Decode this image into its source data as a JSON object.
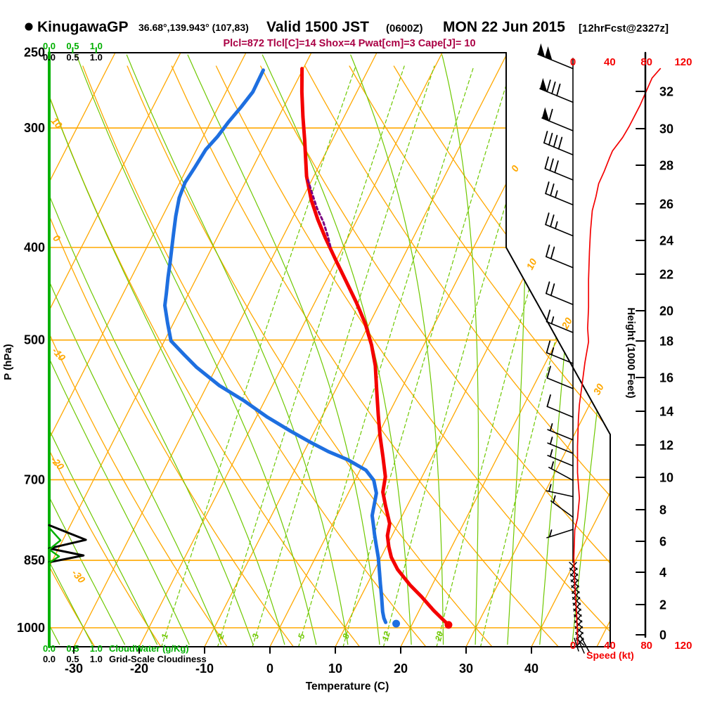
{
  "window": {
    "bg": "#ffffff"
  },
  "title": {
    "bullet": "●",
    "station": "KinugawaGP",
    "coords": "36.68°,139.943° (107,83)",
    "valid": "Valid 1500 JST",
    "zulu": "(0600Z)",
    "date": "MON 22 Jun 2015",
    "fcst": "[12hrFcst@2327z]"
  },
  "params_line": "Plcl=872 Tlcl[C]=14 Shox=4 Pwat[cm]=3 Cape[J]= 10",
  "colors": {
    "isotherm_orange": "#ffa800",
    "adiabat_green": "#6ec800",
    "axis_green": "#00b000",
    "temperature_red": "#f40000",
    "dewpoint_blue": "#1e6fe0",
    "parcel_purple": "#7a0080",
    "params_magenta": "#aa0044",
    "speed_red": "#f40000",
    "frame_black": "#000000"
  },
  "axes": {
    "pressure": {
      "title": "P (hPa)",
      "ticks": [
        "250",
        "300",
        "400",
        "500",
        "700",
        "850",
        "1000"
      ]
    },
    "temperature": {
      "title": "Temperature (C)",
      "ticks": [
        "-30",
        "-20",
        "-10",
        "0",
        "10",
        "20",
        "30",
        "40"
      ]
    },
    "height": {
      "title": "Height (1000 Feet)",
      "ticks": [
        "32",
        "30",
        "28",
        "26",
        "24",
        "22",
        "20",
        "18",
        "16",
        "14",
        "12",
        "10",
        "8",
        "6",
        "4",
        "2",
        "0"
      ]
    },
    "speed": {
      "title": "Speed (kt)",
      "ticks": [
        "0",
        "40",
        "80",
        "120"
      ]
    },
    "cloudwater": {
      "title": "CloudWater (g/Kg)",
      "ticks": [
        "0.0",
        "0.5",
        "1.0"
      ]
    },
    "cloudiness": {
      "title": "Grid-Scale Cloudiness",
      "ticks": [
        "0.0",
        "0.5",
        "1.0"
      ]
    }
  },
  "line_labels": {
    "dry_adiabat": [
      "10",
      "0",
      "-10",
      "-20",
      "-30"
    ],
    "isotherm": [
      "0",
      "10",
      "20",
      "30"
    ],
    "mixing_ratio": [
      "1",
      "2",
      "3",
      "5",
      "8",
      "12",
      "20"
    ]
  },
  "chart_data": {
    "type": "line",
    "variant": "skew-T log-P sounding",
    "pressure_range_hPa": [
      250,
      1050
    ],
    "temperature_axis_C": [
      -30,
      40
    ],
    "speed_axis_kt": [
      0,
      120
    ],
    "height_axis_kft": [
      0,
      32
    ],
    "grid": {
      "isotherms_C": {
        "from": -100,
        "to": 50,
        "step": 10
      },
      "dry_adiabats_C": {
        "from": -40,
        "to": 90,
        "step": 10
      },
      "moist_adiabats_C": {
        "from": -60,
        "to": 45,
        "step": 5
      },
      "mixing_ratio_gkg": [
        1,
        2,
        3,
        5,
        8,
        12,
        20,
        30
      ],
      "pressure_lines_hPa": [
        300,
        400,
        500,
        700,
        850,
        1000
      ]
    },
    "series": [
      {
        "name": "temperature",
        "units": "hPa,C",
        "points": [
          [
            260,
            -40.2
          ],
          [
            275,
            -38.4
          ],
          [
            292,
            -36.3
          ],
          [
            309,
            -34.2
          ],
          [
            337,
            -31.1
          ],
          [
            357,
            -28.5
          ],
          [
            374,
            -26.0
          ],
          [
            391,
            -23.4
          ],
          [
            411,
            -20.3
          ],
          [
            433,
            -17.0
          ],
          [
            457,
            -13.6
          ],
          [
            480,
            -10.7
          ],
          [
            506,
            -8.0
          ],
          [
            532,
            -5.8
          ],
          [
            564,
            -3.7
          ],
          [
            599,
            -1.5
          ],
          [
            630,
            0.4
          ],
          [
            663,
            2.5
          ],
          [
            695,
            4.4
          ],
          [
            721,
            5.2
          ],
          [
            744,
            6.6
          ],
          [
            778,
            8.7
          ],
          [
            801,
            9.3
          ],
          [
            823,
            10.4
          ],
          [
            844,
            11.6
          ],
          [
            869,
            13.5
          ],
          [
            902,
            16.6
          ],
          [
            928,
            19.3
          ],
          [
            959,
            22.2
          ],
          [
            980,
            24.3
          ],
          [
            993,
            25.6
          ]
        ],
        "surface_dot": [
          993,
          25.6
        ]
      },
      {
        "name": "dewpoint",
        "units": "hPa,C",
        "points": [
          [
            261,
            -46.0
          ],
          [
            275,
            -45.9
          ],
          [
            285,
            -46.5
          ],
          [
            296,
            -47.3
          ],
          [
            306,
            -47.8
          ],
          [
            316,
            -48.6
          ],
          [
            330,
            -48.9
          ],
          [
            342,
            -49.2
          ],
          [
            355,
            -48.9
          ],
          [
            371,
            -48.0
          ],
          [
            385,
            -47.1
          ],
          [
            396,
            -46.4
          ],
          [
            414,
            -45.3
          ],
          [
            430,
            -44.4
          ],
          [
            447,
            -43.4
          ],
          [
            460,
            -42.7
          ],
          [
            480,
            -40.9
          ],
          [
            501,
            -39.0
          ],
          [
            518,
            -35.9
          ],
          [
            534,
            -33.0
          ],
          [
            558,
            -28.1
          ],
          [
            579,
            -23.1
          ],
          [
            602,
            -18.3
          ],
          [
            622,
            -13.8
          ],
          [
            639,
            -9.9
          ],
          [
            654,
            -6.3
          ],
          [
            667,
            -2.7
          ],
          [
            684,
            0.9
          ],
          [
            701,
            2.9
          ],
          [
            723,
            4.3
          ],
          [
            741,
            4.8
          ],
          [
            763,
            5.4
          ],
          [
            782,
            6.4
          ],
          [
            798,
            7.2
          ],
          [
            819,
            8.3
          ],
          [
            844,
            9.6
          ],
          [
            876,
            11.0
          ],
          [
            900,
            12.0
          ],
          [
            926,
            13.1
          ],
          [
            962,
            14.5
          ],
          [
            977,
            15.2
          ],
          [
            987,
            15.8
          ]
        ],
        "surface_dot": [
          990,
          17.5
        ]
      },
      {
        "name": "parcel",
        "units": "hPa,C",
        "style": "dashed",
        "points": [
          [
            340,
            -30.6
          ],
          [
            352,
            -28.8
          ],
          [
            364,
            -27.0
          ],
          [
            376,
            -25.0
          ],
          [
            389,
            -23.2
          ],
          [
            399,
            -22.0
          ]
        ]
      },
      {
        "name": "wind_speed",
        "units": "hPa,kt",
        "points": [
          [
            260,
            95
          ],
          [
            266,
            86
          ],
          [
            284,
            73
          ],
          [
            299,
            61
          ],
          [
            307,
            54
          ],
          [
            317,
            43
          ],
          [
            322,
            40
          ],
          [
            333,
            34
          ],
          [
            343,
            28
          ],
          [
            354,
            25
          ],
          [
            366,
            21
          ],
          [
            385,
            19
          ],
          [
            404,
            18
          ],
          [
            432,
            17
          ],
          [
            462,
            17
          ],
          [
            486,
            16
          ],
          [
            502,
            17
          ],
          [
            528,
            13
          ],
          [
            556,
            10
          ],
          [
            584,
            7
          ],
          [
            604,
            6
          ],
          [
            646,
            5
          ],
          [
            688,
            5
          ],
          [
            732,
            7
          ],
          [
            768,
            5
          ],
          [
            790,
            2
          ],
          [
            844,
            1
          ],
          [
            902,
            2
          ],
          [
            964,
            4
          ],
          [
            1022,
            5
          ],
          [
            1040,
            5
          ]
        ]
      }
    ],
    "wind_barbs": [
      {
        "p": 260,
        "kt": 100
      },
      {
        "p": 282,
        "kt": 80
      },
      {
        "p": 302,
        "kt": 60
      },
      {
        "p": 320,
        "kt": 40
      },
      {
        "p": 340,
        "kt": 30
      },
      {
        "p": 361,
        "kt": 25
      },
      {
        "p": 389,
        "kt": 25
      },
      {
        "p": 420,
        "kt": 20
      },
      {
        "p": 459,
        "kt": 20
      },
      {
        "p": 491,
        "kt": 15
      },
      {
        "p": 529,
        "kt": 15
      },
      {
        "p": 562,
        "kt": 10
      },
      {
        "p": 602,
        "kt": 10
      },
      {
        "p": 636,
        "kt": 5
      },
      {
        "p": 657,
        "kt": 5
      },
      {
        "p": 677,
        "kt": 5
      },
      {
        "p": 701,
        "kt": 5
      },
      {
        "p": 729,
        "kt": 5
      },
      {
        "p": 766,
        "kt": 5
      },
      {
        "p": 789,
        "kt": 5
      }
    ],
    "cloudiness_profile": [
      [
        0,
        781
      ],
      [
        0.78,
        809
      ],
      [
        0,
        826
      ],
      [
        0.73,
        840
      ],
      [
        0,
        854
      ]
    ],
    "cloudwater_profile": [
      [
        0,
        786
      ],
      [
        0.24,
        810
      ],
      [
        0,
        828
      ],
      [
        0.21,
        842
      ],
      [
        0,
        855
      ]
    ]
  }
}
